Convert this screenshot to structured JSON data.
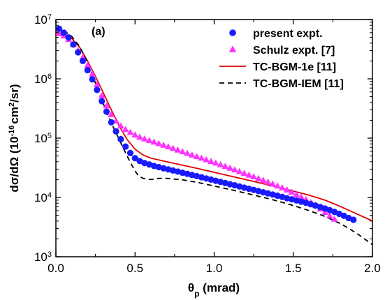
{
  "chart_data": {
    "type": "scatter",
    "panel_label": "(a)",
    "xlabel": "θp (mrad)",
    "xlabel_main": "θ",
    "xlabel_sub": "p",
    "xlabel_unit": " (mrad)",
    "ylabel": "dσ/dΩ (10^-16 cm^2/sr)",
    "ylabel_main": "dσ/dΩ (10",
    "ylabel_exp": "-16",
    "ylabel_mid": "cm",
    "ylabel_exp2": "2",
    "ylabel_end": "/sr)",
    "xlim": [
      0,
      2.0
    ],
    "ylim": [
      1000,
      10000000
    ],
    "yscale": "log",
    "xticks": [
      "0.0",
      "0.5",
      "1.0",
      "1.5",
      "2.0"
    ],
    "yticks": [
      {
        "base": "10",
        "exp": "3"
      },
      {
        "base": "10",
        "exp": "4"
      },
      {
        "base": "10",
        "exp": "5"
      },
      {
        "base": "10",
        "exp": "6"
      },
      {
        "base": "10",
        "exp": "7"
      }
    ],
    "legend_position": "top-right",
    "grid": false,
    "series": [
      {
        "name": "present expt.",
        "kind": "points",
        "marker": "circle",
        "color": "#1a1aff",
        "x": [
          0.02,
          0.05,
          0.08,
          0.11,
          0.14,
          0.17,
          0.2,
          0.23,
          0.26,
          0.29,
          0.32,
          0.35,
          0.38,
          0.41,
          0.44,
          0.47,
          0.5,
          0.53,
          0.56,
          0.59,
          0.62,
          0.65,
          0.68,
          0.71,
          0.74,
          0.77,
          0.8,
          0.83,
          0.86,
          0.89,
          0.92,
          0.95,
          0.98,
          1.01,
          1.04,
          1.07,
          1.1,
          1.13,
          1.16,
          1.19,
          1.22,
          1.25,
          1.28,
          1.31,
          1.34,
          1.37,
          1.4,
          1.43,
          1.46,
          1.49,
          1.52,
          1.55,
          1.58,
          1.61,
          1.64,
          1.67,
          1.7,
          1.73,
          1.76,
          1.79,
          1.82,
          1.85,
          1.88
        ],
        "y": [
          7000000,
          6000000,
          5000000,
          3800000,
          2800000,
          2000000,
          1400000,
          980000,
          650000,
          420000,
          280000,
          185000,
          130000,
          96000,
          72000,
          56000,
          46000,
          41000,
          38000,
          36000,
          34000,
          32500,
          31000,
          29700,
          28500,
          27300,
          26100,
          25000,
          23900,
          22900,
          21900,
          20900,
          20000,
          19100,
          18300,
          17500,
          16700,
          16000,
          15300,
          14600,
          14000,
          13400,
          12800,
          12200,
          11700,
          11200,
          10700,
          10200,
          9700,
          9300,
          8900,
          8500,
          8100,
          7700,
          7300,
          6900,
          6500,
          6100,
          5700,
          5300,
          4900,
          4500,
          4200
        ]
      },
      {
        "name": "Schulz expt. [7]",
        "kind": "points",
        "marker": "triangle",
        "color": "#ff33ff",
        "x": [
          0.02,
          0.05,
          0.08,
          0.11,
          0.14,
          0.17,
          0.2,
          0.23,
          0.26,
          0.29,
          0.32,
          0.35,
          0.38,
          0.41,
          0.44,
          0.47,
          0.5,
          0.53,
          0.56,
          0.59,
          0.62,
          0.65,
          0.68,
          0.71,
          0.74,
          0.77,
          0.8,
          0.83,
          0.86,
          0.89,
          0.92,
          0.95,
          0.98,
          1.01,
          1.04,
          1.07,
          1.1,
          1.13,
          1.16,
          1.19,
          1.22,
          1.25,
          1.28,
          1.31,
          1.34,
          1.37,
          1.4,
          1.43,
          1.46,
          1.49,
          1.52,
          1.55,
          1.58,
          1.61,
          1.64,
          1.67,
          1.7,
          1.73,
          1.76
        ],
        "y": [
          5800000,
          5300000,
          4600000,
          3800000,
          3000000,
          2300000,
          1700000,
          1200000,
          800000,
          520000,
          350000,
          250000,
          195000,
          160000,
          140000,
          125000,
          113000,
          104000,
          97000,
          91000,
          86000,
          81000,
          76000,
          71500,
          67000,
          63000,
          59000,
          55500,
          52000,
          48800,
          46000,
          43200,
          40500,
          38000,
          35600,
          33300,
          31200,
          29200,
          27300,
          25500,
          23800,
          22300,
          20800,
          19400,
          18100,
          16800,
          15600,
          14500,
          13400,
          12300,
          11200,
          10200,
          9200,
          8200,
          7300,
          6400,
          5600,
          4900,
          4300
        ]
      },
      {
        "name": "TC-BGM-1e [11]",
        "kind": "line",
        "style": "solid",
        "color": "#e00000",
        "x": [
          0.0,
          0.05,
          0.1,
          0.15,
          0.2,
          0.25,
          0.3,
          0.35,
          0.4,
          0.45,
          0.5,
          0.55,
          0.6,
          0.7,
          0.8,
          0.9,
          1.0,
          1.1,
          1.2,
          1.3,
          1.4,
          1.5,
          1.6,
          1.7,
          1.8,
          1.9,
          2.0
        ],
        "y": [
          6200000,
          5800000,
          4800000,
          3400000,
          2000000,
          1100000,
          580000,
          300000,
          160000,
          95000,
          65000,
          52000,
          46000,
          40000,
          35000,
          30500,
          26500,
          23000,
          20000,
          17300,
          14900,
          12800,
          10900,
          9000,
          7000,
          5300,
          4000
        ]
      },
      {
        "name": "TC-BGM-IEM [11]",
        "kind": "line",
        "style": "dashed",
        "color": "#000000",
        "x": [
          0.0,
          0.05,
          0.1,
          0.15,
          0.2,
          0.25,
          0.3,
          0.35,
          0.4,
          0.45,
          0.48,
          0.5,
          0.52,
          0.55,
          0.6,
          0.65,
          0.7,
          0.8,
          0.9,
          1.0,
          1.1,
          1.2,
          1.3,
          1.4,
          1.5,
          1.6,
          1.7,
          1.8,
          1.9,
          2.0
        ],
        "y": [
          7200000,
          6500000,
          5200000,
          3500000,
          1900000,
          850000,
          380000,
          180000,
          95000,
          50000,
          35000,
          28000,
          23500,
          21000,
          20000,
          21000,
          21000,
          19800,
          17800,
          15600,
          13600,
          11800,
          10200,
          8700,
          7300,
          6000,
          4800,
          3600,
          2500,
          1600
        ]
      }
    ],
    "legend": [
      {
        "label": "present expt."
      },
      {
        "label": "Schulz expt. [7]"
      },
      {
        "label": "TC-BGM-1e [11]"
      },
      {
        "label": "TC-BGM-IEM [11]"
      }
    ]
  }
}
